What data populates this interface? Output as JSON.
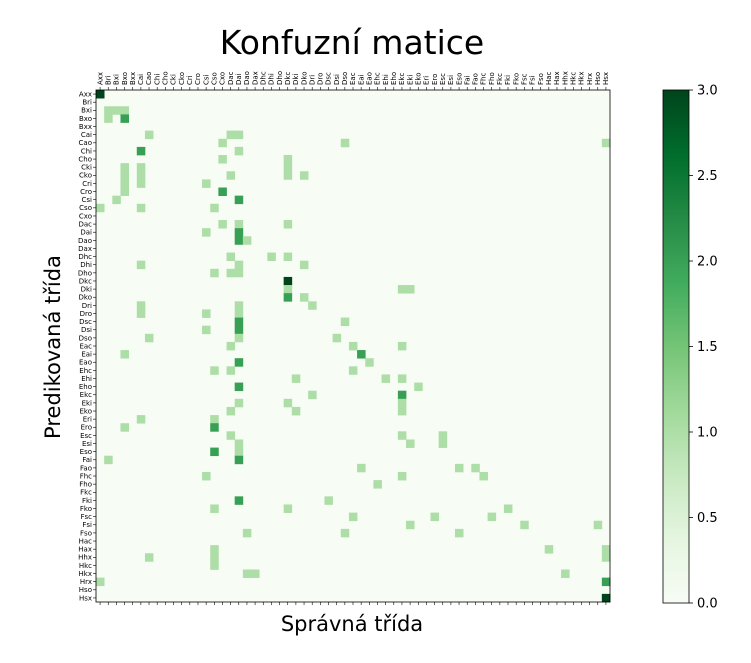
{
  "chart_data": {
    "type": "heatmap",
    "title": "Konfuzní matice",
    "xlabel": "Správná třída",
    "ylabel": "Predikovaná třída",
    "colormap": "Greens",
    "vmin": 0,
    "vmax": 3,
    "colorbar_ticks": [
      "0.0",
      "0.5",
      "1.0",
      "1.5",
      "2.0",
      "2.5",
      "3.0"
    ],
    "x_labels": [
      "Axx",
      "Bri",
      "Bxi",
      "Bxo",
      "Bxx",
      "Cai",
      "Cao",
      "Chi",
      "Cho",
      "Cki",
      "Cko",
      "Cri",
      "Cro",
      "Csi",
      "Cso",
      "Cxo",
      "Dac",
      "Dai",
      "Dao",
      "Dax",
      "Dhc",
      "Dhi",
      "Dho",
      "Dkc",
      "Dki",
      "Dko",
      "Dri",
      "Dro",
      "Dsc",
      "Dsi",
      "Dso",
      "Eac",
      "Eai",
      "Eao",
      "Ehc",
      "Ehi",
      "Eho",
      "Ekc",
      "Eki",
      "Eko",
      "Eri",
      "Ero",
      "Esc",
      "Esi",
      "Eso",
      "Fai",
      "Fao",
      "Fhc",
      "Fho",
      "Fkc",
      "Fki",
      "Fko",
      "Fsc",
      "Fsi",
      "Fso",
      "Hac",
      "Hax",
      "Hhx",
      "Hkc",
      "Hkx",
      "Hrx",
      "Hso",
      "Hsx"
    ],
    "y_labels": [
      "Axx",
      "Bri",
      "Bxi",
      "Bxo",
      "Bxx",
      "Cai",
      "Cao",
      "Chi",
      "Cho",
      "Cki",
      "Cko",
      "Cri",
      "Cro",
      "Csi",
      "Cso",
      "Cxo",
      "Dac",
      "Dai",
      "Dao",
      "Dax",
      "Dhc",
      "Dhi",
      "Dho",
      "Dkc",
      "Dki",
      "Dko",
      "Dri",
      "Dro",
      "Dsc",
      "Dsi",
      "Dso",
      "Eac",
      "Eai",
      "Eao",
      "Ehc",
      "Ehi",
      "Eho",
      "Ekc",
      "Eki",
      "Eko",
      "Eri",
      "Ero",
      "Esc",
      "Esi",
      "Eso",
      "Fai",
      "Fao",
      "Fhc",
      "Fho",
      "Fkc",
      "Fki",
      "Fko",
      "Fsc",
      "Fsi",
      "Fso",
      "Hac",
      "Hax",
      "Hhx",
      "Hkc",
      "Hkx",
      "Hrx",
      "Hso",
      "Hsx"
    ],
    "cells": [
      [
        0,
        0,
        3
      ],
      [
        2,
        1,
        1
      ],
      [
        2,
        2,
        1
      ],
      [
        2,
        3,
        1
      ],
      [
        3,
        1,
        1
      ],
      [
        3,
        3,
        2
      ],
      [
        5,
        6,
        1
      ],
      [
        5,
        16,
        1
      ],
      [
        5,
        17,
        1
      ],
      [
        6,
        15,
        1
      ],
      [
        6,
        30,
        1
      ],
      [
        6,
        62,
        1
      ],
      [
        7,
        5,
        2
      ],
      [
        7,
        17,
        1
      ],
      [
        8,
        15,
        1
      ],
      [
        8,
        23,
        1
      ],
      [
        9,
        3,
        1
      ],
      [
        9,
        5,
        1
      ],
      [
        9,
        23,
        1
      ],
      [
        10,
        3,
        1
      ],
      [
        10,
        5,
        1
      ],
      [
        10,
        16,
        1
      ],
      [
        10,
        23,
        1
      ],
      [
        10,
        25,
        1
      ],
      [
        11,
        3,
        1
      ],
      [
        11,
        5,
        1
      ],
      [
        11,
        13,
        1
      ],
      [
        12,
        3,
        1
      ],
      [
        12,
        15,
        2
      ],
      [
        13,
        2,
        1
      ],
      [
        13,
        17,
        2
      ],
      [
        14,
        0,
        1
      ],
      [
        14,
        5,
        1
      ],
      [
        14,
        14,
        1
      ],
      [
        16,
        15,
        1
      ],
      [
        16,
        17,
        1
      ],
      [
        16,
        23,
        1
      ],
      [
        17,
        13,
        1
      ],
      [
        17,
        17,
        2
      ],
      [
        18,
        17,
        2
      ],
      [
        18,
        18,
        1
      ],
      [
        20,
        16,
        1
      ],
      [
        20,
        21,
        1
      ],
      [
        20,
        23,
        1
      ],
      [
        21,
        5,
        1
      ],
      [
        21,
        17,
        1
      ],
      [
        21,
        25,
        1
      ],
      [
        22,
        14,
        1
      ],
      [
        22,
        16,
        1
      ],
      [
        22,
        17,
        1
      ],
      [
        23,
        23,
        3
      ],
      [
        24,
        23,
        1
      ],
      [
        24,
        37,
        1
      ],
      [
        24,
        38,
        1
      ],
      [
        25,
        23,
        2
      ],
      [
        25,
        25,
        1
      ],
      [
        26,
        5,
        1
      ],
      [
        26,
        17,
        1
      ],
      [
        26,
        26,
        1
      ],
      [
        27,
        5,
        1
      ],
      [
        27,
        13,
        1
      ],
      [
        27,
        17,
        1
      ],
      [
        28,
        17,
        2
      ],
      [
        28,
        30,
        1
      ],
      [
        29,
        13,
        1
      ],
      [
        29,
        17,
        2
      ],
      [
        30,
        6,
        1
      ],
      [
        30,
        17,
        1
      ],
      [
        30,
        29,
        1
      ],
      [
        31,
        16,
        1
      ],
      [
        31,
        31,
        1
      ],
      [
        31,
        37,
        1
      ],
      [
        32,
        3,
        1
      ],
      [
        32,
        32,
        2
      ],
      [
        33,
        17,
        2
      ],
      [
        33,
        33,
        1
      ],
      [
        34,
        14,
        1
      ],
      [
        34,
        16,
        1
      ],
      [
        34,
        31,
        1
      ],
      [
        35,
        24,
        1
      ],
      [
        35,
        35,
        1
      ],
      [
        35,
        37,
        1
      ],
      [
        36,
        17,
        2
      ],
      [
        36,
        39,
        1
      ],
      [
        37,
        26,
        1
      ],
      [
        37,
        37,
        2
      ],
      [
        38,
        17,
        1
      ],
      [
        38,
        23,
        1
      ],
      [
        38,
        37,
        1
      ],
      [
        39,
        16,
        1
      ],
      [
        39,
        24,
        1
      ],
      [
        39,
        37,
        1
      ],
      [
        40,
        5,
        1
      ],
      [
        40,
        14,
        1
      ],
      [
        41,
        3,
        1
      ],
      [
        41,
        14,
        2
      ],
      [
        42,
        16,
        1
      ],
      [
        42,
        37,
        1
      ],
      [
        42,
        42,
        1
      ],
      [
        43,
        17,
        1
      ],
      [
        43,
        38,
        1
      ],
      [
        43,
        42,
        1
      ],
      [
        44,
        14,
        2
      ],
      [
        44,
        17,
        1
      ],
      [
        45,
        1,
        1
      ],
      [
        45,
        17,
        2
      ],
      [
        46,
        32,
        1
      ],
      [
        46,
        44,
        1
      ],
      [
        46,
        46,
        1
      ],
      [
        47,
        13,
        1
      ],
      [
        47,
        37,
        1
      ],
      [
        47,
        47,
        1
      ],
      [
        48,
        34,
        1
      ],
      [
        50,
        17,
        2
      ],
      [
        50,
        28,
        1
      ],
      [
        51,
        14,
        1
      ],
      [
        51,
        23,
        1
      ],
      [
        51,
        50,
        1
      ],
      [
        52,
        31,
        1
      ],
      [
        52,
        41,
        1
      ],
      [
        52,
        48,
        1
      ],
      [
        53,
        38,
        1
      ],
      [
        53,
        52,
        1
      ],
      [
        53,
        61,
        1
      ],
      [
        54,
        18,
        1
      ],
      [
        54,
        30,
        1
      ],
      [
        54,
        44,
        1
      ],
      [
        56,
        14,
        1
      ],
      [
        56,
        55,
        1
      ],
      [
        56,
        62,
        1
      ],
      [
        57,
        6,
        1
      ],
      [
        57,
        14,
        1
      ],
      [
        57,
        62,
        1
      ],
      [
        58,
        14,
        1
      ],
      [
        59,
        18,
        1
      ],
      [
        59,
        19,
        1
      ],
      [
        59,
        57,
        1
      ],
      [
        60,
        0,
        1
      ],
      [
        60,
        62,
        2
      ],
      [
        62,
        62,
        3
      ]
    ]
  }
}
